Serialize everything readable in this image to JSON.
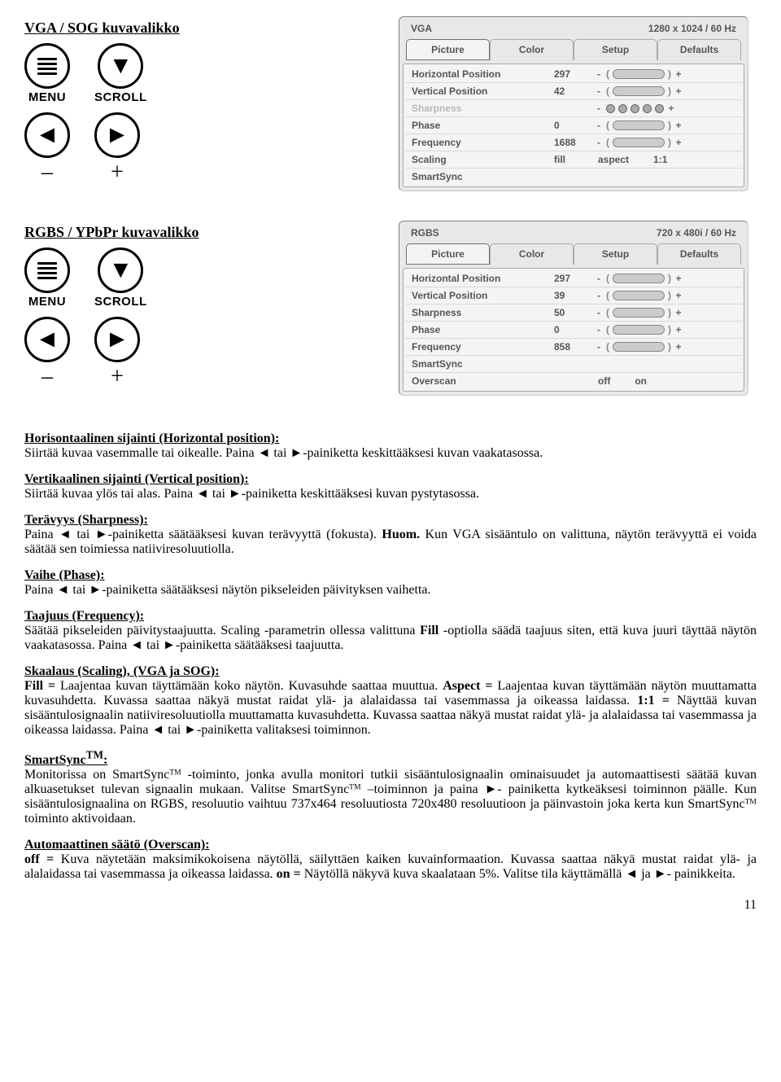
{
  "title_vga": "VGA / SOG kuvavalikko",
  "title_rgbs": "RGBS / YPbPr kuvavalikko",
  "ctrl_labels": {
    "menu": "MENU",
    "scroll": "SCROLL",
    "minus": "–",
    "plus": "+"
  },
  "arrows": {
    "left": "◄",
    "right": "►",
    "down": "▼"
  },
  "osd_vga": {
    "source": "VGA",
    "mode": "1280 x 1024  /  60 Hz",
    "tabs": [
      "Picture",
      "Color",
      "Setup",
      "Defaults"
    ],
    "rows": [
      {
        "label": "Horizontal Position",
        "value": "297",
        "type": "slider"
      },
      {
        "label": "Vertical Position",
        "value": "42",
        "type": "slider"
      },
      {
        "label": "Sharpness",
        "value": "",
        "type": "circles",
        "dim": true
      },
      {
        "label": "Phase",
        "value": "0",
        "type": "slider"
      },
      {
        "label": "Frequency",
        "value": "1688",
        "type": "slider"
      },
      {
        "label": "Scaling",
        "value": "fill",
        "type": "scaling",
        "opt1": "aspect",
        "opt2": "1:1"
      },
      {
        "label": "SmartSync",
        "value": "",
        "type": "none"
      }
    ]
  },
  "osd_rgbs": {
    "source": "RGBS",
    "mode": "720 x 480i / 60 Hz",
    "tabs": [
      "Picture",
      "Color",
      "Setup",
      "Defaults"
    ],
    "rows": [
      {
        "label": "Horizontal Position",
        "value": "297",
        "type": "slider"
      },
      {
        "label": "Vertical Position",
        "value": "39",
        "type": "slider"
      },
      {
        "label": "Sharpness",
        "value": "50",
        "type": "slider"
      },
      {
        "label": "Phase",
        "value": "0",
        "type": "slider"
      },
      {
        "label": "Frequency",
        "value": "858",
        "type": "slider"
      },
      {
        "label": "SmartSync",
        "value": "",
        "type": "none"
      },
      {
        "label": "Overscan",
        "value": "",
        "type": "onoff",
        "opt1": "off",
        "opt2": "on"
      }
    ]
  },
  "body": {
    "hp_title": "Horisontaalinen sijainti (Horizontal position):",
    "hp_text": "Siirtää kuvaa vasemmalle tai oikealle. Paina ◄ tai ►-painiketta keskittääksesi kuvan vaakatasossa.",
    "vp_title": "Vertikaalinen sijainti (Vertical position):",
    "vp_text": "Siirtää kuvaa ylös tai alas. Paina ◄ tai ►-painiketta keskittääksesi kuvan pystytasossa.",
    "sh_title": "Terävyys (Sharpness):",
    "sh_text": "Paina ◄ tai ►-painiketta säätääksesi kuvan terävyyttä (fokusta). ",
    "sh_bold": "Huom.",
    "sh_text2": " Kun VGA sisääntulo on valittuna, näytön terävyyttä ei voida säätää sen toimiessa natiiviresoluutiolla.",
    "ph_title": "Vaihe (Phase):",
    "ph_text": "Paina ◄ tai ►-painiketta säätääksesi näytön pikseleiden päivityksen vaihetta.",
    "fr_title": "Taajuus (Frequency):",
    "fr_text": "Säätää pikseleiden päivitystaajuutta. Scaling -parametrin ollessa valittuna ",
    "fr_bold": "Fill",
    "fr_text2": " -optiolla säädä taajuus siten, että kuva juuri täyttää näytön vaakatasossa. Paina ◄ tai ►-painiketta säätääksesi taajuutta.",
    "sc_title": "Skaalaus (Scaling), (VGA ja SOG):",
    "sc_fill": "Fill =",
    "sc_t1": " Laajentaa kuvan täyttämään koko näytön. Kuvasuhde saattaa muuttua. ",
    "sc_aspect": "Aspect =",
    "sc_t2": " Laajentaa kuvan täyttämään näytön muuttamatta kuvasuhdetta. Kuvassa saattaa näkyä mustat raidat ylä- ja alalaidassa tai vasemmassa ja oikeassa laidassa. ",
    "sc_11": "1:1 =",
    "sc_t3": " Näyttää kuvan sisääntulosignaalin natiiviresoluutiolla muuttamatta kuvasuhdetta. Kuvassa saattaa näkyä mustat raidat ylä- ja alalaidassa tai vasemmassa ja oikeassa laidassa. Paina ◄ tai ►-painiketta valitaksesi toiminnon.",
    "ss_title_a": "SmartSync",
    "ss_title_b": ":",
    "ss_text": "Monitorissa on SmartSyncᵀᴹ -toiminto, jonka avulla monitori tutkii sisääntulosignaalin ominaisuudet ja automaattisesti säätää kuvan alkuasetukset tulevan signaalin mukaan. Valitse SmartSyncᵀᴹ –toiminnon ja paina ►- painiketta kytkeäksesi toiminnon päälle. Kun sisääntulosignaalina on RGBS, resoluutio vaihtuu 737x464 resoluutiosta 720x480 resoluutioon ja päinvastoin joka kerta kun SmartSyncᵀᴹ toiminto aktivoidaan.",
    "ov_title": "Automaattinen säätö (Overscan):",
    "ov_off": "off =",
    "ov_t1": " Kuva näytetään maksimikokoisena näytöllä, säilyttäen kaiken kuvainformaation. Kuvassa saattaa näkyä mustat raidat ylä- ja alalaidassa tai vasemmassa ja oikeassa laidassa. ",
    "ov_on": "on =",
    "ov_t2": " Näytöllä näkyvä kuva skaalataan 5%. Valitse tila käyttämällä ◄ ja ►- painikkeita."
  },
  "page_number": "11"
}
